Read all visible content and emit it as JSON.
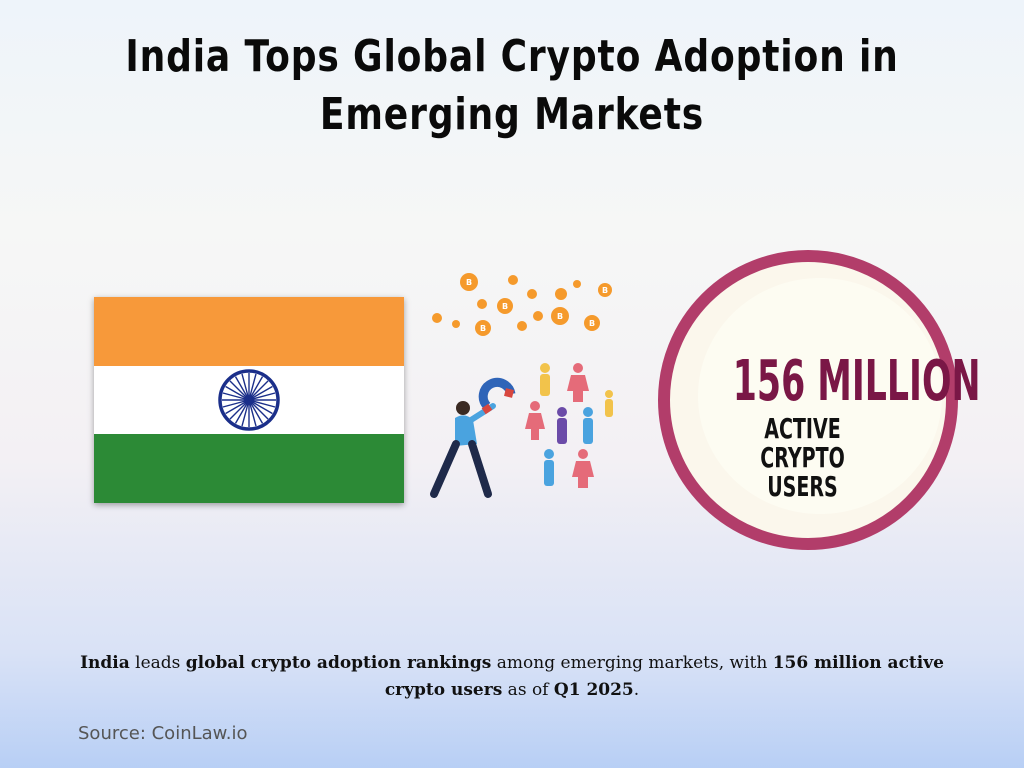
{
  "title": "India Tops Global Crypto Adoption in Emerging Markets",
  "stat": {
    "number": "156 MILLION",
    "label": "ACTIVE CRYPTO USERS"
  },
  "caption": {
    "part1_bold": "India",
    "part2": " leads ",
    "part3_bold": "global crypto adoption rankings",
    "part4": " among emerging markets, with ",
    "part5_bold": "156 million active crypto users",
    "part6": " as of ",
    "part7_bold": "Q1 2025",
    "part8": "."
  },
  "source": "Source: CoinLaw.io",
  "colors": {
    "saffron": "#f7993a",
    "green": "#2c8a36",
    "chakra": "#1b2f8a",
    "ring": "#b23d6a",
    "stat_number": "#7a1746",
    "bitcoin": "#f59a2c"
  },
  "icons": {
    "flag": "india-flag",
    "illustration": "magnet-attracting-people-and-bitcoins"
  }
}
